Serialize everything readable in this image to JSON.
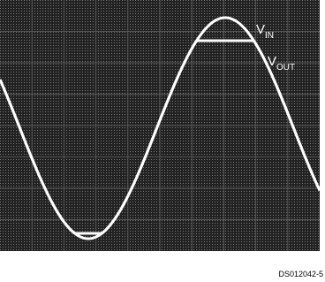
{
  "labels": {
    "vin": {
      "main": "V",
      "sub": "IN"
    },
    "vout": {
      "main": "V",
      "sub": "OUT"
    }
  },
  "caption": "DS012042-5"
}
